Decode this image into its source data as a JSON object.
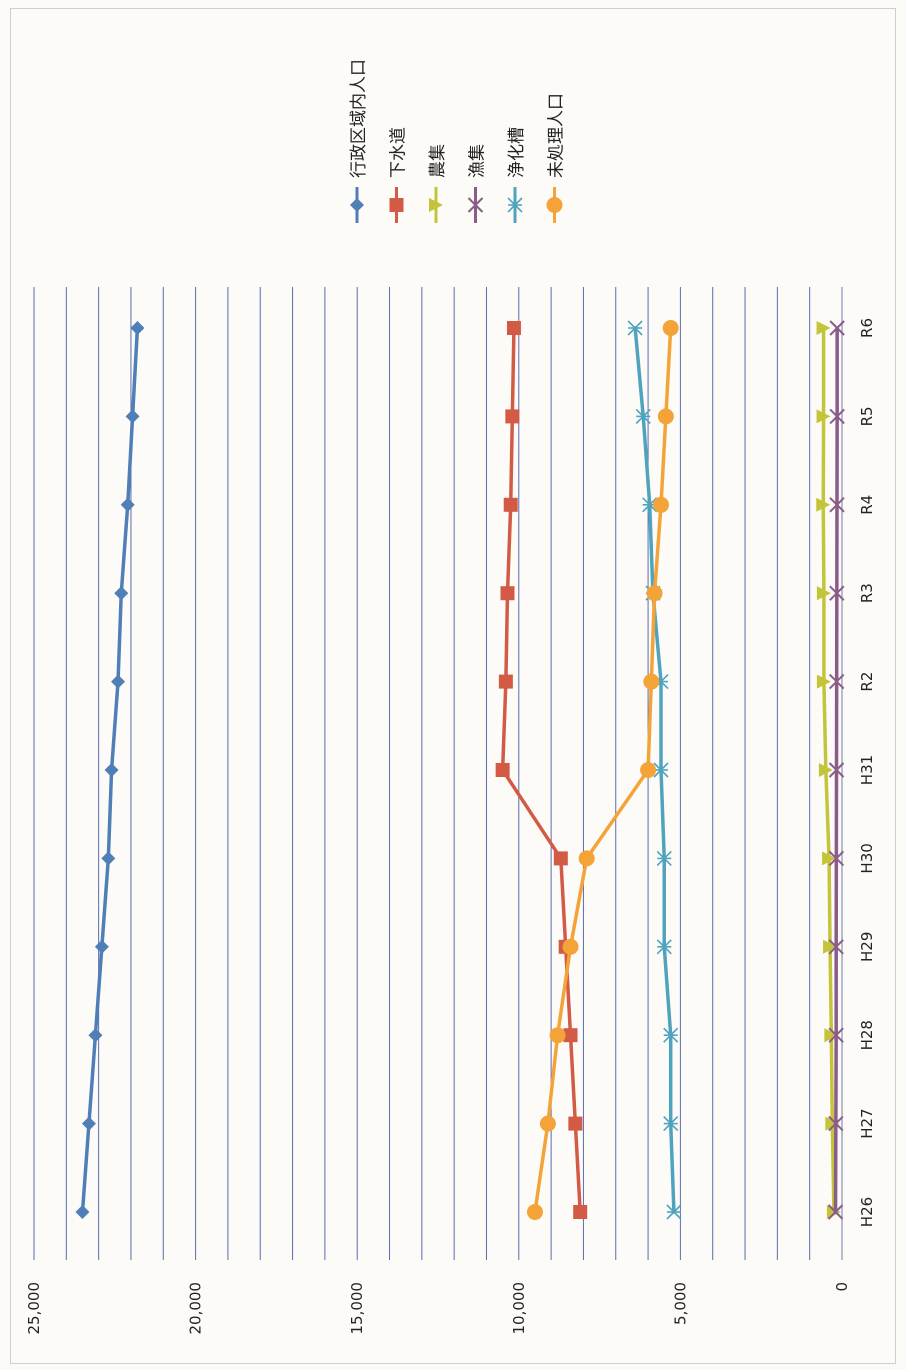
{
  "chart_data": {
    "type": "line",
    "orientation": "rotated-90-clockwise",
    "categories": [
      "H26",
      "H27",
      "H28",
      "H29",
      "H30",
      "H31",
      "R2",
      "R3",
      "R4",
      "R5",
      "R6"
    ],
    "ylim": [
      0,
      25000
    ],
    "y_ticks": [
      0,
      5000,
      10000,
      15000,
      20000,
      25000
    ],
    "y_tick_labels": [
      "0",
      "5,000",
      "10,000",
      "15,000",
      "20,000",
      "25,000"
    ],
    "y_gridline_step": 1000,
    "grid": true,
    "legend_position": "top-right",
    "series": [
      {
        "name": "行政区域内人口",
        "color": "#4f7fb6",
        "marker": "diamond",
        "values": [
          23500,
          23300,
          23100,
          22900,
          22700,
          22600,
          22400,
          22300,
          22100,
          21950,
          21800
        ]
      },
      {
        "name": "下水道",
        "color": "#d35a45",
        "marker": "square",
        "values": [
          8100,
          8250,
          8400,
          8550,
          8700,
          10500,
          10400,
          10350,
          10250,
          10200,
          10150
        ]
      },
      {
        "name": "農集",
        "color": "#c4c43a",
        "marker": "triangle",
        "values": [
          250,
          300,
          330,
          370,
          400,
          500,
          560,
          560,
          580,
          570,
          570
        ]
      },
      {
        "name": "漁集",
        "color": "#8a5c8a",
        "marker": "x",
        "values": [
          200,
          190,
          180,
          180,
          175,
          170,
          165,
          160,
          155,
          150,
          150
        ]
      },
      {
        "name": "浄化槽",
        "color": "#4fa3bf",
        "marker": "asterisk",
        "values": [
          5200,
          5300,
          5300,
          5500,
          5500,
          5600,
          5600,
          5850,
          5950,
          6150,
          6400
        ]
      },
      {
        "name": "未処理人口",
        "color": "#f4a338",
        "marker": "circle",
        "values": [
          9500,
          9100,
          8800,
          8400,
          7900,
          6000,
          5900,
          5800,
          5600,
          5450,
          5300
        ]
      }
    ]
  }
}
